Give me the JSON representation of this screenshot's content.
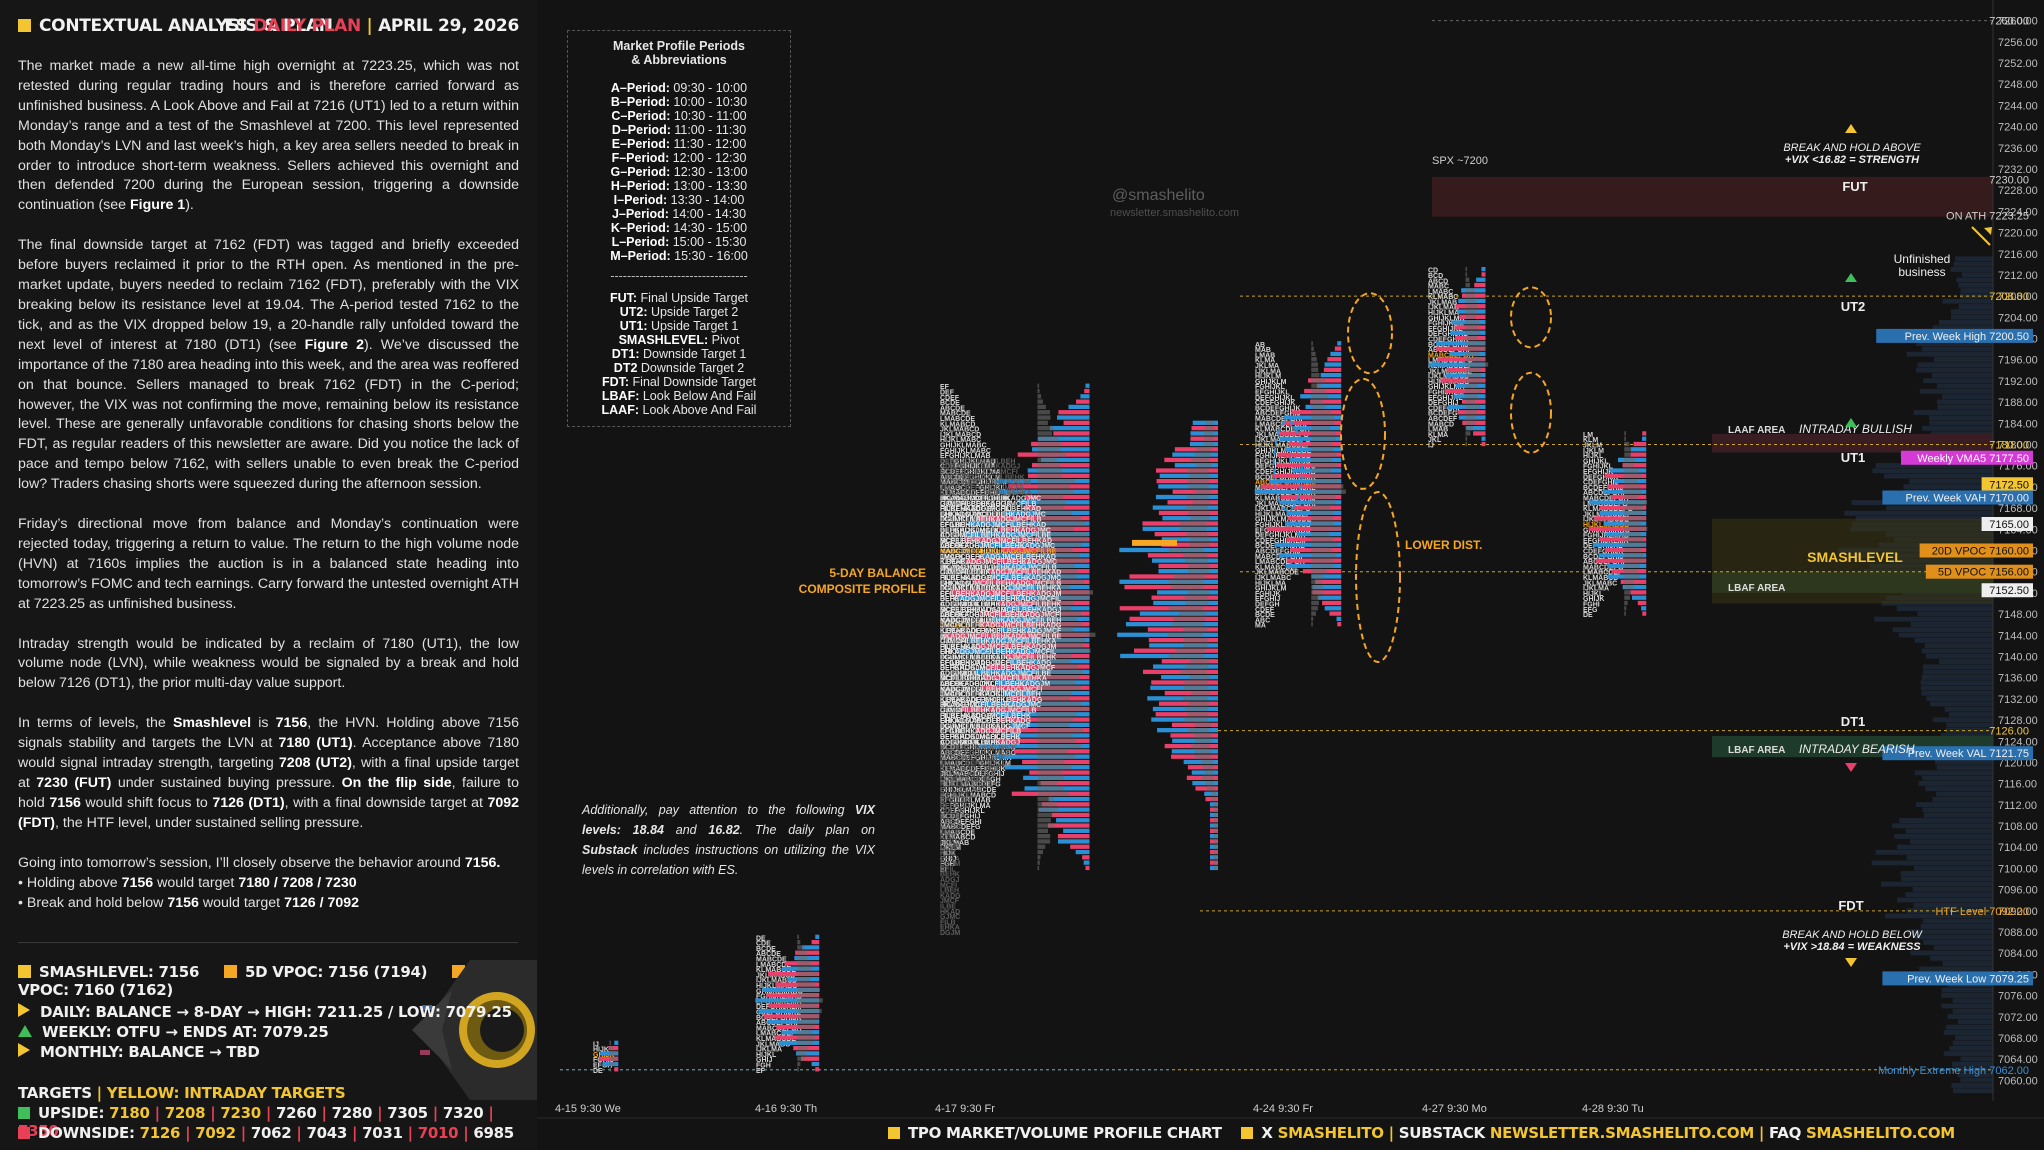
{
  "header": {
    "left": "CONTEXTUAL ANALYSIS & PLAN",
    "es": "ES",
    "plan": "DAILY PLAN",
    "sep": "|",
    "date": "APRIL 29, 2026"
  },
  "paragraphs": {
    "p1": "The market made a new all-time high overnight at 7223.25, which was not retested during regular trading hours and is therefore carried forward as unfinished business. A Look Above and Fail at 7216 (UT1) led to a return within Monday’s range and a test of the Smashlevel at 7200. This level represented both Monday’s LVN and last week’s high, a key area sellers needed to break in order to introduce short-term weakness. Sellers achieved this overnight and then defended 7200 during the European session, triggering a downside continuation (see ",
    "p1_fig": "Figure 1",
    "p1_end": ").",
    "p2": "The final downside target at 7162 (FDT) was tagged and briefly exceeded before buyers reclaimed it prior to the RTH open. As mentioned in the pre-market update, buyers needed to reclaim 7162 (FDT), preferably with the VIX breaking below its resistance level at 19.04. The A-period tested 7162 to the tick, and as the VIX dropped below 19, a 20-handle rally unfolded toward the next level of interest at 7180 (DT1) (see ",
    "p2_fig": "Figure 2",
    "p2_end": "). We’ve discussed the importance of the 7180 area heading into this week, and the area was reoffered on that bounce. Sellers managed to break 7162 (FDT) in the C-period; however, the VIX was not confirming the move, remaining below its resistance level. These are generally unfavorable conditions for chasing shorts below the FDT, as regular readers of this newsletter are aware. Did you notice the lack of pace and tempo below 7162, with sellers unable to even break the C-period low? Traders chasing shorts were squeezed during the afternoon session.",
    "p3": "Friday’s directional move from balance and Monday’s continuation were rejected today, triggering a return to value. The return to the high volume node (HVN) at 7160s implies the auction is in a balanced state heading into tomorrow’s FOMC and tech earnings. Carry forward the untested overnight ATH at 7223.25 as unfinished business.",
    "p4": "Intraday strength would be indicated by a reclaim of 7180 (UT1), the low volume node (LVN), while weakness would be signaled by a break and hold below 7126 (DT1), the prior multi-day value support.",
    "p5_a": "In terms of levels, the ",
    "p5_b": "Smashlevel",
    "p5_c": " is ",
    "p5_d": "7156",
    "p5_e": ", the HVN. Holding above 7156 signals stability and targets the LVN at ",
    "p5_f": "7180 (UT1)",
    "p5_g": ". Acceptance above 7180 would signal intraday strength, targeting ",
    "p5_h": "7208 (UT2)",
    "p5_i": ", with a final upside target at ",
    "p5_j": "7230 (FUT)",
    "p5_k": " under sustained buying pressure. ",
    "p5_l": "On the flip side",
    "p5_m": ", failure to hold ",
    "p5_n": "7156",
    "p5_o": " would shift focus to ",
    "p5_p": "7126 (DT1)",
    "p5_q": ", with a final downside target at ",
    "p5_r": "7092 (FDT)",
    "p5_s": ", the HTF level, under sustained selling pressure.",
    "p6_a": "Going into tomorrow’s session, I’ll closely observe the behavior around ",
    "p6_b": "7156.",
    "p6_l1a": "• Holding above ",
    "p6_l1b": "7156",
    "p6_l1c": " would target ",
    "p6_l1d": "7180 / 7208 / 7230",
    "p6_l2a": "• Break and hold below ",
    "p6_l2b": "7156",
    "p6_l2c": " would target ",
    "p6_l2d": "7126 / 7092"
  },
  "levels_row": {
    "smash": "SMASHLEVEL: 7156",
    "vpoc5": "5D VPOC: 7156 (7194)",
    "vpoc20": "20D VPOC: 7160 (7162)"
  },
  "bias": {
    "daily": "DAILY: BALANCE → 8-DAY → HIGH: 7211.25 / LOW: 7079.25",
    "weekly": "WEEKLY: OTFU → ENDS AT: 7079.25",
    "monthly": "MONTHLY: BALANCE → TBD"
  },
  "targets": {
    "title": "TARGETS",
    "sep": "|",
    "yellow": "YELLOW: INTRADAY TARGETS",
    "upside_label": "UPSIDE:",
    "upside_yellow": [
      "7180",
      "7208",
      "7230"
    ],
    "upside_white": [
      "7260",
      "7280",
      "7305",
      "7320"
    ],
    "upside_red": "7350",
    "downside_label": "DOWNSIDE:",
    "downside_yellow": [
      "7126",
      "7092"
    ],
    "downside_white": [
      "7062",
      "7043",
      "7031"
    ],
    "downside_red": "7010",
    "downside_last": "6985"
  },
  "legend": {
    "title1": "Market Profile Periods",
    "title2": "& Abbreviations",
    "periods": [
      [
        "A–Period:",
        "09:30 - 10:00"
      ],
      [
        "B–Period:",
        "10:00 - 10:30"
      ],
      [
        "C–Period:",
        "10:30 - 11:00"
      ],
      [
        "D–Period:",
        "11:00 - 11:30"
      ],
      [
        "E–Period:",
        "11:30 - 12:00"
      ],
      [
        "F–Period:",
        "12:00 - 12:30"
      ],
      [
        "G–Period:",
        "12:30 - 13:00"
      ],
      [
        "H–Period:",
        "13:00 - 13:30"
      ],
      [
        "I–Period:",
        "13:30 - 14:00"
      ],
      [
        "J–Period:",
        "14:00 - 14:30"
      ],
      [
        "K–Period:",
        "14:30 - 15:00"
      ],
      [
        "L–Period:",
        "15:00 - 15:30"
      ],
      [
        "M–Period:",
        "15:30 - 16:00"
      ]
    ],
    "divider": "---------------------------------",
    "abbrevs": [
      [
        "FUT:",
        "Final Upside Target"
      ],
      [
        "UT2:",
        "Upside Target 2"
      ],
      [
        "UT1:",
        "Upside Target 1"
      ],
      [
        "SMASHLEVEL:",
        "Pivot"
      ],
      [
        "DT1:",
        "Downside Target 1"
      ],
      [
        "DT2",
        "Downside Target 2"
      ],
      [
        "FDT:",
        "Final Downside Target"
      ],
      [
        "LBAF:",
        "Look Below And Fail"
      ],
      [
        "LAAF:",
        "Look Above And Fail"
      ]
    ]
  },
  "note": {
    "a": "Additionally, pay attention to the following ",
    "b": "VIX levels: 18.84",
    "c": " and ",
    "d": "16.82",
    "e": ". The daily plan on ",
    "f": "Substack",
    "g": " includes instructions on utilizing the VIX levels in correlation with ES."
  },
  "watermark": {
    "handle": "@smashelito",
    "site": "newsletter.smashelito.com"
  },
  "footer": {
    "a": "TPO MARKET/VOLUME PROFILE CHART",
    "x": "X",
    "xh": "SMASHELITO",
    "sep": "|",
    "sub": "SUBSTACK",
    "subh": "NEWSLETTER.SMASHELITO.COM",
    "faq": "FAQ",
    "faqh": "SMASHELITO.COM"
  },
  "chart_data": {
    "type": "tpo-profile",
    "instrument": "ES",
    "y_axis": {
      "min": 7058,
      "max": 7262,
      "ticks": [
        7260,
        7256,
        7252,
        7248,
        7244,
        7240,
        7236,
        7232,
        7228,
        7224,
        7220,
        7216,
        7212,
        7208,
        7204,
        7200,
        7196,
        7192,
        7188,
        7184,
        7180,
        7176,
        7172,
        7168,
        7164,
        7160,
        7156,
        7152,
        7148,
        7144,
        7140,
        7136,
        7132,
        7128,
        7124,
        7120,
        7116,
        7112,
        7108,
        7104,
        7100,
        7096,
        7092,
        7088,
        7084,
        7080,
        7076,
        7072,
        7068,
        7064,
        7060
      ]
    },
    "x_labels": [
      {
        "t": "4-15  9:30 We",
        "day": 0
      },
      {
        "t": "4-16  9:30 Th",
        "day": 1
      },
      {
        "t": "4-17  9:30 Fr",
        "day": 2
      },
      {
        "t": "4-24  9:30 Fr",
        "day": 3
      },
      {
        "t": "4-27  9:30 Mo",
        "day": 4
      },
      {
        "t": "4-28  9:30 Tu",
        "day": 5
      }
    ],
    "axis_badges": [
      {
        "price": 7260.0,
        "label": "7260.00",
        "style": "plain"
      },
      {
        "price": 7230.0,
        "label": "7230.00",
        "style": "plain"
      },
      {
        "price": 7223.25,
        "label": "ON ATH  7223.25",
        "style": "plain"
      },
      {
        "price": 7208.0,
        "label": "7208.00",
        "style": "yellowtext"
      },
      {
        "price": 7200.5,
        "label": "Prev. Week High  7200.50",
        "style": "blue"
      },
      {
        "price": 7180.0,
        "label": "7180.00",
        "style": "yellowtext"
      },
      {
        "price": 7177.5,
        "label": "Weekly VMA5  7177.50",
        "style": "magenta"
      },
      {
        "price": 7172.5,
        "label": "7172.50",
        "style": "yellow"
      },
      {
        "price": 7170.0,
        "label": "Prev. Week VAH  7170.00",
        "style": "blue"
      },
      {
        "price": 7165.0,
        "label": "7165.00",
        "style": "white"
      },
      {
        "price": 7160.0,
        "label": "20D VPOC  7160.00",
        "style": "orange"
      },
      {
        "price": 7156.0,
        "label": "5D VPOC  7156.00",
        "style": "orange"
      },
      {
        "price": 7152.5,
        "label": "7152.50",
        "style": "white"
      },
      {
        "price": 7126.0,
        "label": "7126.00",
        "style": "yellowtext"
      },
      {
        "price": 7121.75,
        "label": "Prev. Week VAL  7121.75",
        "style": "blue"
      },
      {
        "price": 7092.0,
        "label": "HTF Level  7092.00",
        "style": "orangetext"
      },
      {
        "price": 7079.25,
        "label": "Prev. Week Low  7079.25",
        "style": "blue"
      },
      {
        "price": 7062.0,
        "label": "Monthly Extreme High  7062.00",
        "style": "bluetext"
      }
    ],
    "levels": [
      {
        "name": "FUT",
        "price": 7230
      },
      {
        "name": "UT2",
        "price": 7208
      },
      {
        "name": "UT1",
        "price": 7180
      },
      {
        "name": "SMASHLEVEL",
        "price": 7156
      },
      {
        "name": "DT1",
        "price": 7126
      },
      {
        "name": "FDT",
        "price": 7092
      }
    ],
    "zone_labels": {
      "spx": "SPX ~7200",
      "fut": "FUT",
      "ut2": "UT2",
      "ut1": "UT1",
      "smash": "SMASHLEVEL",
      "dt1": "DT1",
      "fdt": "FDT",
      "laaf": "LAAF AREA",
      "lbaf": "LBAF AREA",
      "laaf2": "LBAF AREA",
      "intraday_bull": "INTRADAY BULLISH",
      "intraday_bear": "INTRADAY BEARISH",
      "break_above_1": "BREAK AND HOLD ABOVE",
      "break_above_2": "+VIX <16.82 = STRENGTH",
      "break_below_1": "BREAK AND HOLD BELOW",
      "break_below_2": "+VIX >18.84 = WEAKNESS",
      "unfinished_1": "Unfinished",
      "unfinished_2": "business",
      "lower_dist": "LOWER DIST.",
      "composite_1": "5-DAY BALANCE",
      "composite_2": "COMPOSITE PROFILE"
    },
    "colors": {
      "bg": "#131313",
      "blue": "#2a8fd4",
      "red": "#e8406a",
      "grey": "#6e6e6e",
      "yellow": "#f2c531",
      "orange": "#f5a623",
      "green": "#3fbf5a"
    }
  }
}
